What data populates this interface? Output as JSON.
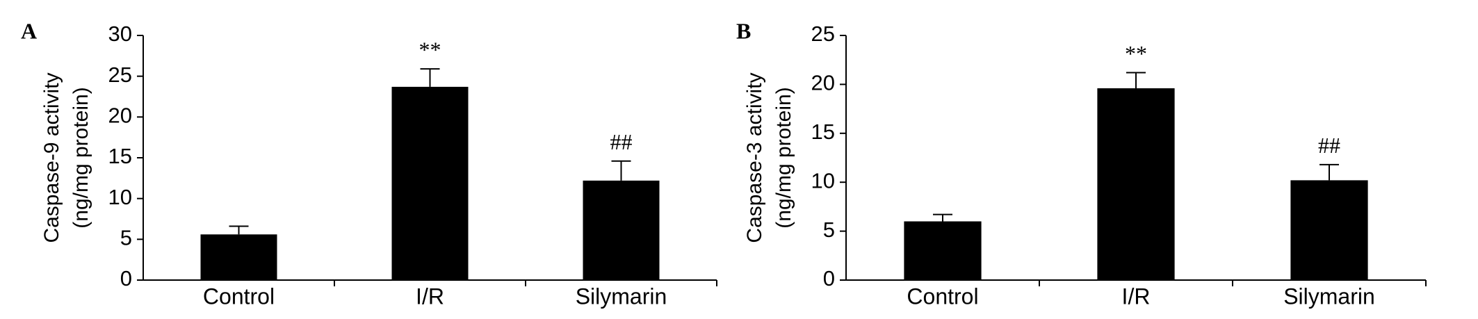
{
  "chart_data": [
    {
      "type": "bar",
      "panel": "A",
      "ylabel": [
        "Caspase-9 activity",
        "(ng/mg protein)"
      ],
      "categories": [
        "Control",
        "I/R",
        "Silymarin"
      ],
      "values": [
        5.6,
        23.7,
        12.2
      ],
      "errors": [
        1.0,
        2.2,
        2.4
      ],
      "annotations": [
        null,
        "**",
        "##"
      ],
      "color": "#000000",
      "ylim": [
        0,
        30
      ],
      "yticks": [
        0,
        5,
        10,
        15,
        20,
        25,
        30
      ]
    },
    {
      "type": "bar",
      "panel": "B",
      "ylabel": [
        "Caspase-3 activity",
        "(ng/mg protein)"
      ],
      "categories": [
        "Control",
        "I/R",
        "Silymarin"
      ],
      "values": [
        6.0,
        19.6,
        10.2
      ],
      "errors": [
        0.7,
        1.6,
        1.6
      ],
      "annotations": [
        null,
        "**",
        "##"
      ],
      "color": "#000000",
      "ylim": [
        0,
        25
      ],
      "yticks": [
        0,
        5,
        10,
        15,
        20,
        25
      ]
    }
  ]
}
